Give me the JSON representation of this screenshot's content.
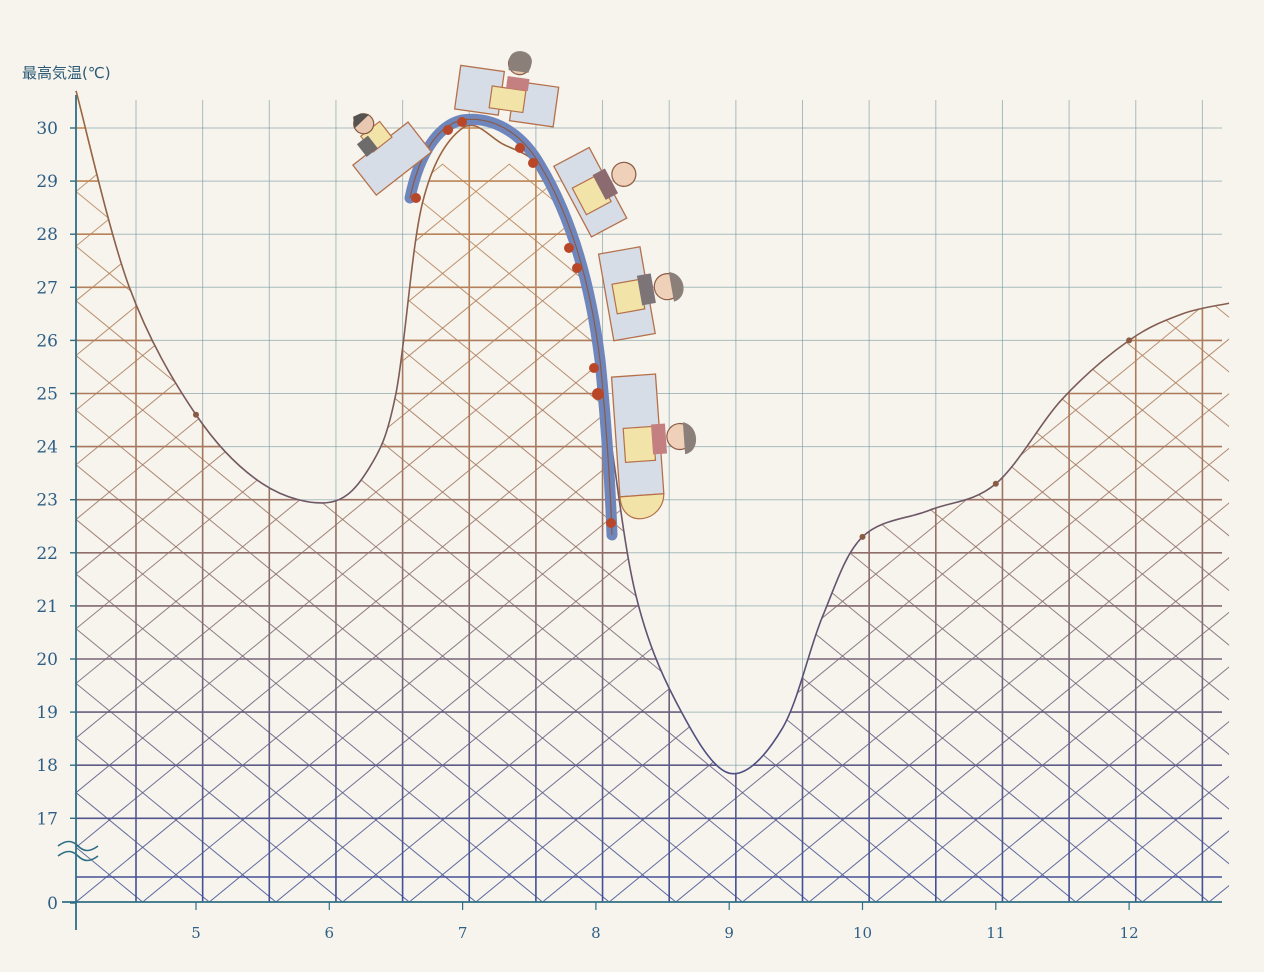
{
  "chart_data": {
    "type": "line",
    "ylabel": "最高気温(℃)",
    "xlabel": "",
    "x_ticks": [
      "5",
      "6",
      "7",
      "8",
      "9",
      "10",
      "11",
      "12"
    ],
    "y_ticks": [
      "30",
      "29",
      "28",
      "27",
      "26",
      "25",
      "24",
      "23",
      "22",
      "21",
      "20",
      "19",
      "18",
      "17",
      "0"
    ],
    "y_axis_break": true,
    "ylim": [
      17,
      30
    ],
    "xlim": [
      4.1,
      12.75
    ],
    "grid": true,
    "series": [
      {
        "x": [
          4.1,
          4.5,
          5,
          5.5,
          6,
          6.3,
          6.5,
          6.7,
          7,
          7.3,
          7.6,
          7.9,
          8.1,
          8.3,
          8.6,
          9,
          9.4,
          9.7,
          10,
          10.5,
          11,
          11.5,
          12,
          12.4,
          12.75
        ],
        "values": [
          30.7,
          27.0,
          24.6,
          23.3,
          22.95,
          23.6,
          25.0,
          28.6,
          30.0,
          29.7,
          29.2,
          27.6,
          24.3,
          21.2,
          19.2,
          17.85,
          18.7,
          20.8,
          22.3,
          22.8,
          23.3,
          24.9,
          26.0,
          26.5,
          26.7
        ],
        "markers_at": [
          5,
          10,
          11,
          12
        ]
      }
    ]
  },
  "colors": {
    "background": "#f6f4ec",
    "top_color": "#c48a55",
    "bottom_color": "#3f4f97",
    "axis": "#2f6f86",
    "label": "#2c5a75",
    "line_top": "#a0653a",
    "line_bottom": "#4a4d86",
    "cart_body": "#d7dde6",
    "cart_seat": "#f2e3a8",
    "cart_track": "#7e95c6",
    "cart_outline": "#b5704a",
    "rivet": "#b8472a"
  },
  "illustration": "roller-coaster cars with riders"
}
